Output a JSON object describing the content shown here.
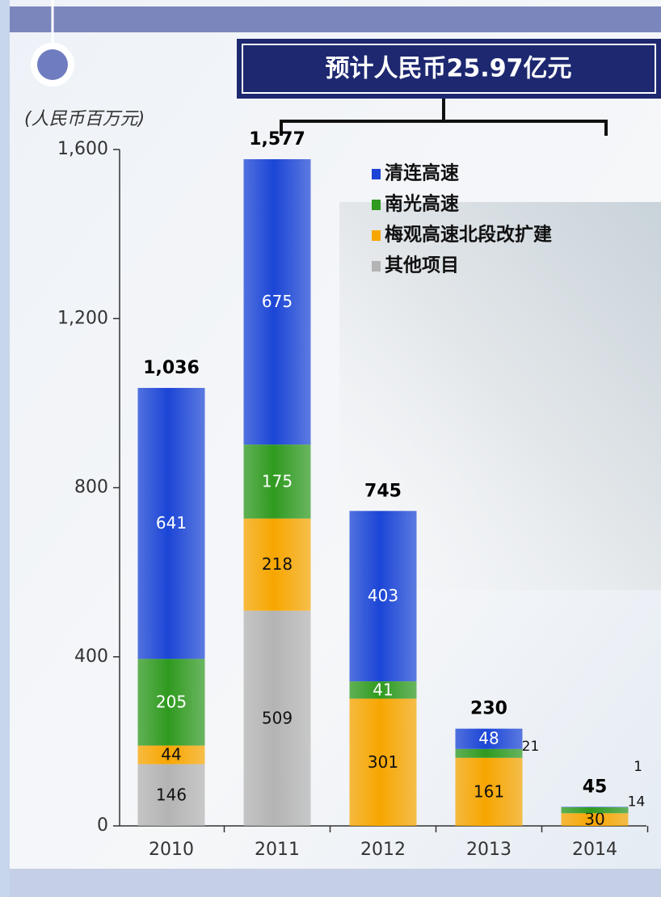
{
  "chart_data": {
    "type": "stacked_bar",
    "annotation": "预计人民币25.97亿元",
    "y_axis_label": "(人民币百万元)",
    "categories": [
      "2010",
      "2011",
      "2012",
      "2013",
      "2014"
    ],
    "series": [
      {
        "name": "清连高速",
        "color": "#1b45d6",
        "values": [
          641,
          675,
          403,
          48,
          1
        ]
      },
      {
        "name": "南光高速",
        "color": "#2f9a1f",
        "values": [
          205,
          175,
          41,
          21,
          14
        ]
      },
      {
        "name": "梅观高速北段改扩建",
        "color": "#f7a600",
        "values": [
          44,
          218,
          301,
          161,
          30
        ]
      },
      {
        "name": "其他项目",
        "color": "#b4b4b4",
        "values": [
          146,
          509,
          null,
          null,
          null
        ]
      }
    ],
    "totals": {
      "values": [
        1036,
        1577,
        745,
        230,
        45
      ],
      "value_labels": [
        "1,036",
        "1,577",
        "745",
        "230",
        "45"
      ]
    },
    "ylim": [
      0,
      1600
    ],
    "yticks": [
      0,
      {
        "value": 400,
        "label": "400"
      },
      {
        "value": 800,
        "label": "800"
      },
      {
        "value": 1200,
        "label": "1,200"
      },
      {
        "value": 1600,
        "label": "1,600"
      }
    ],
    "grid": false,
    "legend": "top-right"
  }
}
